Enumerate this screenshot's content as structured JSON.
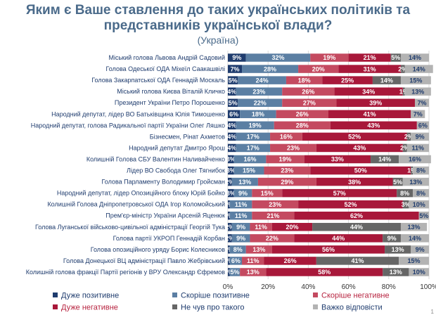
{
  "title_line1": "Яким є Ваше ставлення до таких українських політиків та",
  "title_line2": "представників української влади?",
  "subtitle": "(Україна)",
  "page_number": "1",
  "chart_data": {
    "type": "bar",
    "orientation": "horizontal",
    "stacked": true,
    "xlim": [
      0,
      100
    ],
    "x_ticks": [
      "0%",
      "20%",
      "40%",
      "60%",
      "80%",
      "100%"
    ],
    "categories": [
      "Міський голова Львова Андрій Садовий",
      "Голова Одеської ОДА Міхеїл Саакашвілі",
      "Голова Закарпатської ОДА Геннадій Москаль",
      "Міський голова Києва Віталій Кличко",
      "Президент України Петро Порошенко",
      "Народний депутат, лідер ВО Батьківщина Юлія Тимошенко",
      "Народний депутат, голова Радикальної партії України Олег Ляшко",
      "Бізнесмен, Рінат Ахметов",
      "Народний депутат Дмитро Ярош",
      "Колишній Голова СБУ Валентин Наливайченко",
      "Лідер ВО Свобода Олег Тягнибок",
      "Голова Парламенту Володимир Гройсман",
      "Народний депутат, лідер Опозиційного блоку Юрій Бойко",
      "Колишній Голова Дніпропетровської ОДА Ігор Коломойський",
      "Прем'єр-міністр України Арсеній Яценюк",
      "Голова Луганської військово-цивільної адміністрації Георгій Тука",
      "Голова партії УКРОП Геннадій Корбан",
      "Голова опозиційного уряду Борис Колесников",
      "Голова Донецької ВЦ адміністрації Павло Жебрівський",
      "Колишній голова фракції Партії регіонів у ВРУ Олександр Єфремов"
    ],
    "series": [
      {
        "name": "Дуже позитивне",
        "color": "#1f3c6e",
        "values": [
          9,
          7,
          5,
          4,
          5,
          6,
          4,
          4,
          4,
          3,
          3,
          2,
          3,
          1,
          1,
          2,
          2,
          1,
          1,
          1
        ]
      },
      {
        "name": "Скоріше позитивне",
        "color": "#5b7fa3",
        "values": [
          32,
          28,
          24,
          23,
          22,
          18,
          19,
          17,
          17,
          16,
          15,
          13,
          9,
          11,
          11,
          9,
          9,
          8,
          6,
          5
        ]
      },
      {
        "name": "Скоріше негативне",
        "color": "#c44a60",
        "values": [
          19,
          20,
          18,
          26,
          27,
          26,
          28,
          16,
          23,
          19,
          23,
          29,
          15,
          23,
          21,
          11,
          22,
          13,
          11,
          13
        ]
      },
      {
        "name": "Дуже негативне",
        "color": "#a8183a",
        "values": [
          21,
          31,
          25,
          34,
          39,
          41,
          43,
          52,
          43,
          33,
          50,
          38,
          57,
          52,
          62,
          20,
          44,
          56,
          26,
          58
        ]
      },
      {
        "name": "Не чув про такого",
        "color": "#666666",
        "values": [
          5,
          2,
          14,
          1,
          0,
          0,
          0,
          2,
          2,
          14,
          1,
          5,
          8,
          3,
          0,
          44,
          9,
          13,
          41,
          13
        ]
      },
      {
        "name": "Важко відповісти",
        "color": "#b3b3b3",
        "values": [
          14,
          14,
          15,
          13,
          7,
          7,
          6,
          9,
          11,
          16,
          8,
          13,
          8,
          10,
          5,
          13,
          14,
          9,
          15,
          10
        ]
      }
    ],
    "legend_position": "bottom"
  }
}
